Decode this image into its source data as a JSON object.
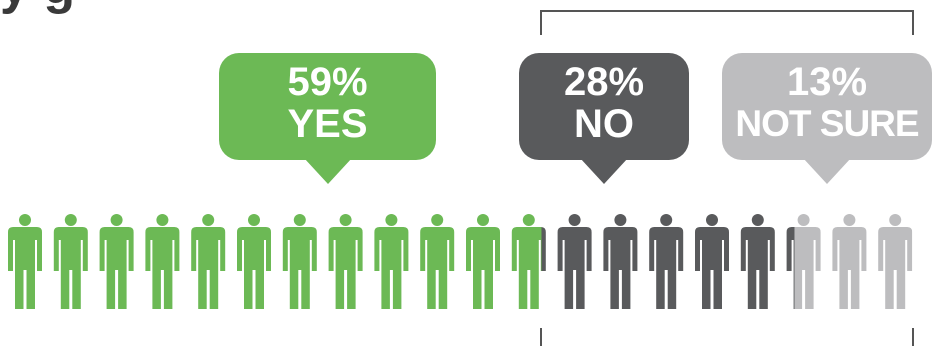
{
  "title_partial": "y      g",
  "colors": {
    "yes": "#6cb955",
    "no": "#595a5c",
    "not_sure": "#bdbdbf",
    "bracket": "#555555"
  },
  "chart_data": {
    "type": "pictograph",
    "title": "",
    "total_icons": 20,
    "icon": "person-icon",
    "categories": [
      "YES",
      "NO",
      "NOT SURE"
    ],
    "values": [
      59,
      28,
      13
    ],
    "unit": "%",
    "data_labels": [
      {
        "value": "59%",
        "label": "YES"
      },
      {
        "value": "28%",
        "label": "NO"
      },
      {
        "value": "13%",
        "label": "NOT SURE"
      }
    ]
  }
}
